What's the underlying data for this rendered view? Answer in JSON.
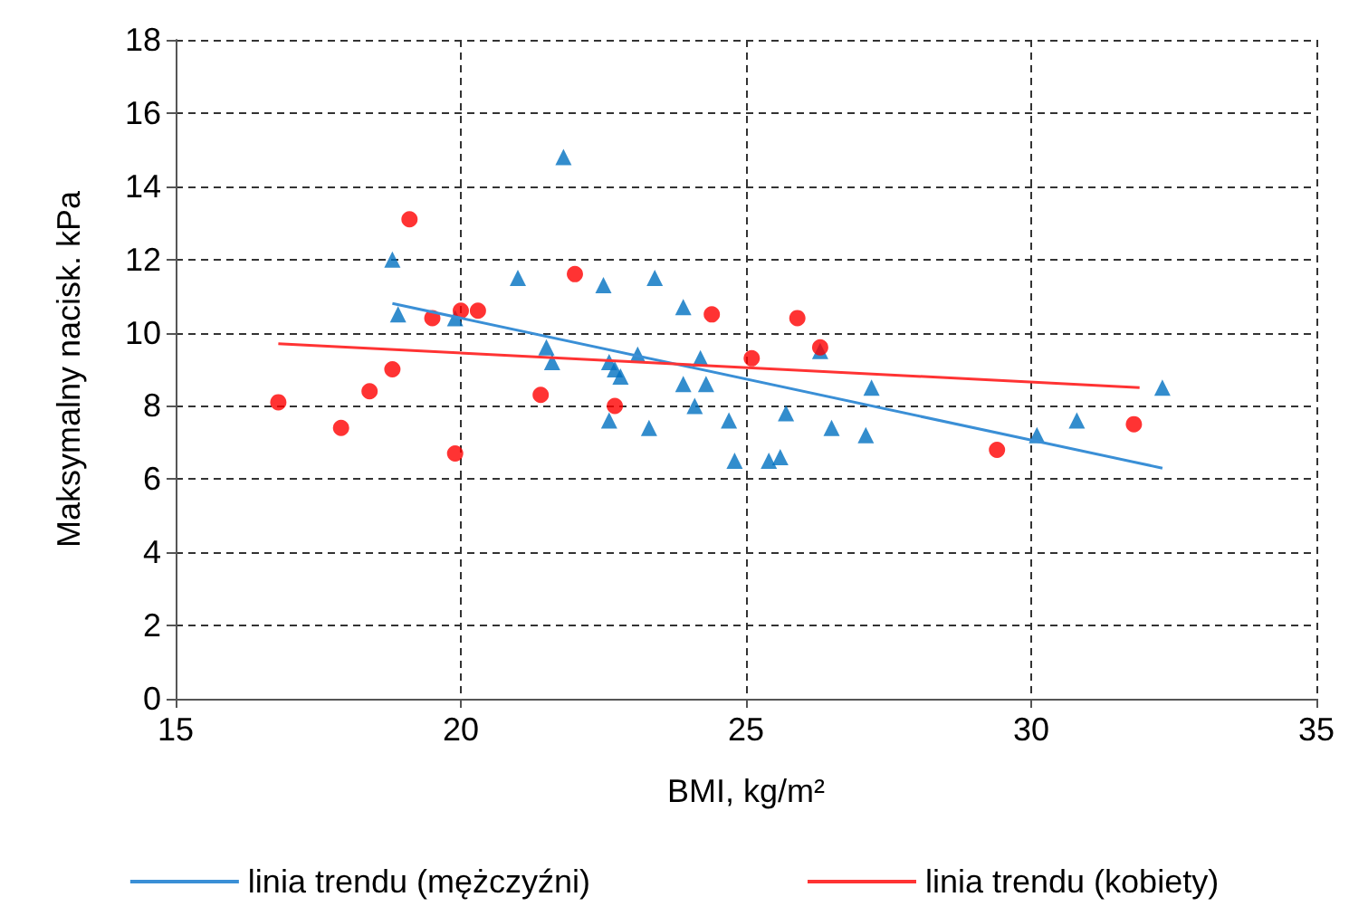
{
  "chart_data": {
    "type": "scatter",
    "xlabel": "BMI, kg/m²",
    "ylabel": "Maksymalny nacisk. kPa",
    "xlim": [
      15,
      35
    ],
    "xticks": [
      15,
      20,
      25,
      30,
      35
    ],
    "ylim": [
      0,
      18
    ],
    "yticks": [
      0,
      2,
      4,
      6,
      8,
      10,
      12,
      14,
      16,
      18
    ],
    "grid": true,
    "legend": "bottom",
    "series": [
      {
        "marker": "triangle",
        "color": "#0070c0",
        "x": [
          18.8,
          18.9,
          19.9,
          21.0,
          21.5,
          21.6,
          21.8,
          22.5,
          22.6,
          22.6,
          22.7,
          22.8,
          23.1,
          23.3,
          23.4,
          23.9,
          23.9,
          24.1,
          24.2,
          24.3,
          24.7,
          24.8,
          25.4,
          25.6,
          25.7,
          26.3,
          26.5,
          27.1,
          27.2,
          30.1,
          30.8,
          32.3
        ],
        "values": [
          12.0,
          10.5,
          10.4,
          11.5,
          9.6,
          9.2,
          14.8,
          11.3,
          9.2,
          7.6,
          9.0,
          8.8,
          9.4,
          7.4,
          11.5,
          10.7,
          8.6,
          8.0,
          9.3,
          8.6,
          7.6,
          6.5,
          6.5,
          6.6,
          7.8,
          9.5,
          7.4,
          7.2,
          8.5,
          7.2,
          7.6,
          8.5
        ]
      },
      {
        "marker": "circle",
        "color": "#ff0000",
        "x": [
          16.8,
          17.9,
          18.4,
          18.8,
          19.1,
          19.5,
          19.9,
          20.0,
          20.3,
          21.4,
          22.0,
          22.7,
          24.4,
          25.1,
          25.9,
          26.3,
          29.4,
          31.8
        ],
        "values": [
          8.1,
          7.4,
          8.4,
          9.0,
          13.1,
          10.4,
          6.7,
          10.6,
          10.6,
          8.3,
          11.6,
          8.0,
          10.5,
          9.3,
          10.4,
          9.6,
          6.8,
          7.5
        ]
      },
      {
        "type": "line",
        "name": "linia trendu (mężczyźni)",
        "color": "#3a8fd6",
        "marker": "none",
        "x": [
          18.8,
          32.3
        ],
        "values": [
          10.8,
          6.3
        ]
      },
      {
        "type": "line",
        "name": "linia trendu (kobiety)",
        "color": "#ff3333",
        "marker": "none",
        "x": [
          16.8,
          31.9
        ],
        "values": [
          9.7,
          8.5
        ]
      }
    ]
  }
}
